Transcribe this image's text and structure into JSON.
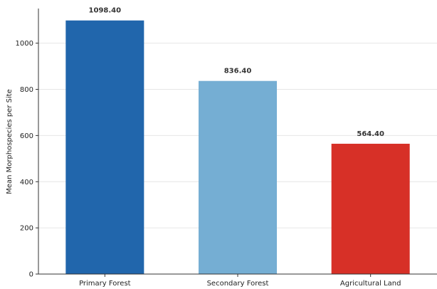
{
  "chart_data": {
    "type": "bar",
    "title": "",
    "xlabel": "",
    "ylabel": "Mean Morphospecies per Site",
    "categories": [
      "Primary Forest",
      "Secondary Forest",
      "Agricultural Land"
    ],
    "values": [
      1098.4,
      836.4,
      564.4
    ],
    "value_labels": [
      "1098.40",
      "836.40",
      "564.40"
    ],
    "colors": [
      "#2166ac",
      "#75aed3",
      "#d73027"
    ],
    "ylim": [
      0,
      1150
    ],
    "yticks": [
      0,
      200,
      400,
      600,
      800,
      1000
    ],
    "grid": "horizontal",
    "legend": "none"
  }
}
